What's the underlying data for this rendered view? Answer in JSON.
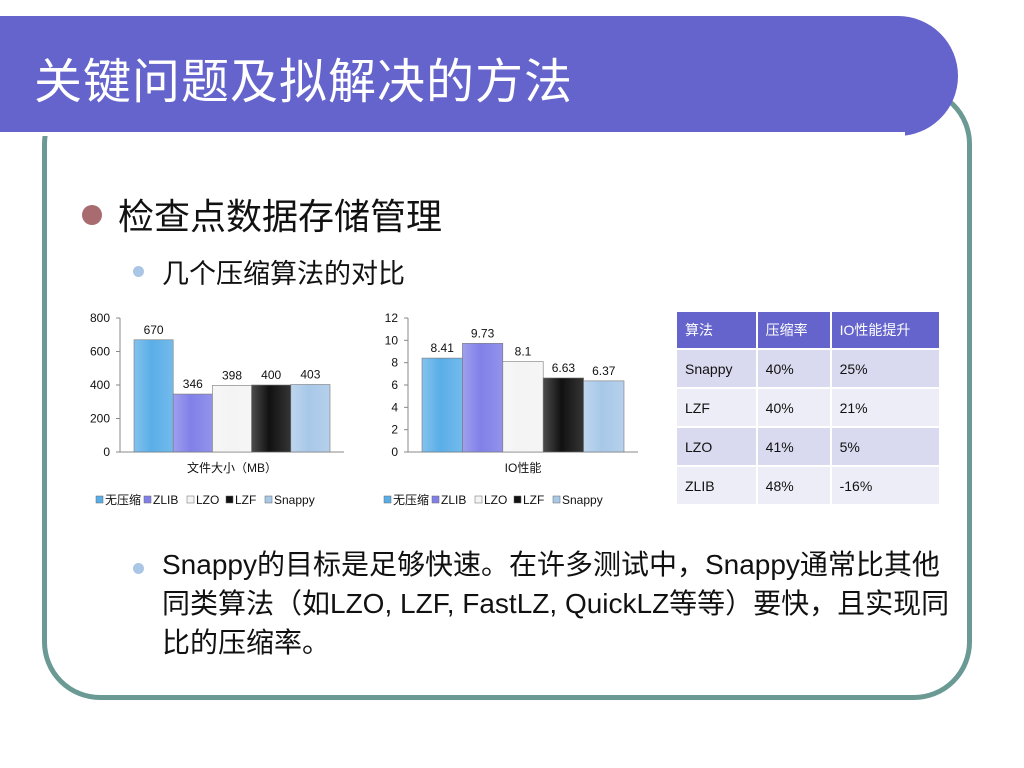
{
  "title": "关键问题及拟解决的方法",
  "bullets": {
    "level1": "检查点数据存储管理",
    "level2": "几个压缩算法的对比",
    "note": "Snappy的目标是足够快速。在许多测试中，Snappy通常比其他同类算法（如LZO, LZF, FastLZ, QuickLZ等等）要快，且实现同比的压缩率。"
  },
  "colors": {
    "title_bar": "#6464cc",
    "frame_border": "#6b9a95",
    "bullet_main": "#a86b6f",
    "bullet_sub": "#a9c6e5"
  },
  "chart_data": [
    {
      "type": "bar",
      "xlabel": "文件大小（MB）",
      "ylim": [
        0,
        800
      ],
      "yticks": [
        0,
        200,
        400,
        600,
        800
      ],
      "legend_position": "bottom",
      "series": [
        {
          "name": "无压缩",
          "values": [
            670
          ],
          "color": "#5aaee8"
        },
        {
          "name": "ZLIB",
          "values": [
            346
          ],
          "color": "#8080e8"
        },
        {
          "name": "LZO",
          "values": [
            398
          ],
          "color": "#f4f4f4"
        },
        {
          "name": "LZF",
          "values": [
            400
          ],
          "color": "#111111"
        },
        {
          "name": "Snappy",
          "values": [
            403
          ],
          "color": "#a8c8e8"
        }
      ]
    },
    {
      "type": "bar",
      "xlabel": "IO性能",
      "ylim": [
        0,
        12
      ],
      "yticks": [
        0,
        2,
        4,
        6,
        8,
        10,
        12
      ],
      "legend_position": "bottom",
      "series": [
        {
          "name": "无压缩",
          "values": [
            8.41
          ],
          "color": "#5aaee8"
        },
        {
          "name": "ZLIB",
          "values": [
            9.73
          ],
          "color": "#8080e8"
        },
        {
          "name": "LZO",
          "values": [
            8.1
          ],
          "color": "#f4f4f4"
        },
        {
          "name": "LZF",
          "values": [
            6.63
          ],
          "color": "#111111"
        },
        {
          "name": "Snappy",
          "values": [
            6.37
          ],
          "color": "#a8c8e8"
        }
      ]
    }
  ],
  "table": {
    "headers": [
      "算法",
      "压缩率",
      "IO性能提升"
    ],
    "rows": [
      [
        "Snappy",
        "40%",
        "25%"
      ],
      [
        "LZF",
        "40%",
        "21%"
      ],
      [
        "LZO",
        "41%",
        "5%"
      ],
      [
        "ZLIB",
        "48%",
        "-16%"
      ]
    ]
  }
}
